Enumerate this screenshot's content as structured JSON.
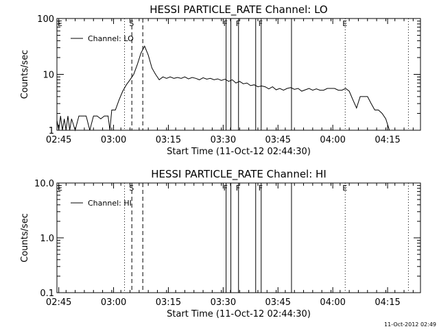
{
  "timestamp": "11-Oct-2012 02:49",
  "chart_data": [
    {
      "type": "line",
      "title": "HESSI PARTICLE_RATE Channel: LO",
      "xlabel": "Start Time (11-Oct-12 02:44:30)",
      "ylabel": "Counts/sec",
      "yscale": "log",
      "ylim": [
        1,
        100
      ],
      "xlim_minutes": [
        0,
        99.5
      ],
      "xticks": [
        "02:45",
        "03:00",
        "03:15",
        "03:30",
        "03:45",
        "04:00",
        "04:15"
      ],
      "xtick_minutes": [
        0.5,
        15.5,
        30.5,
        45.5,
        60.5,
        75.5,
        90.5
      ],
      "yticks": [
        "1",
        "10",
        "100"
      ],
      "ytick_values": [
        1,
        10,
        100
      ],
      "grid": false,
      "legend_position": "top-left",
      "series": [
        {
          "name": "Channel: LO",
          "x": [
            0,
            0.5,
            1,
            1.5,
            2,
            2.5,
            3,
            3.5,
            4,
            5,
            6,
            7,
            8,
            9,
            10,
            11,
            12,
            13,
            14,
            14.5,
            15,
            16,
            17,
            18,
            19,
            20,
            21,
            22,
            23,
            24,
            25,
            26,
            27,
            28,
            29,
            30,
            31,
            32,
            33,
            34,
            35,
            36,
            37,
            38,
            39,
            40,
            41,
            42,
            43,
            44,
            45,
            46,
            47,
            48,
            49,
            50,
            51,
            52,
            53,
            54,
            55,
            56,
            57,
            58,
            59,
            60,
            61,
            62,
            63,
            64,
            65,
            66,
            67,
            68,
            69,
            70,
            71,
            72,
            73,
            74,
            75,
            76,
            77,
            78,
            79,
            80,
            81,
            82,
            83,
            84,
            85,
            86,
            87,
            88,
            89,
            90,
            91
          ],
          "y": [
            1.5,
            1,
            1.8,
            1,
            1.6,
            1,
            1.8,
            1,
            1.6,
            1,
            1.8,
            1.8,
            1.8,
            1,
            1.8,
            1.8,
            1.6,
            1.8,
            1.8,
            1,
            2.3,
            2.3,
            3.5,
            5,
            6.5,
            8,
            10,
            15,
            24,
            32,
            22,
            13,
            10,
            8,
            9,
            8.5,
            9,
            8.5,
            8.8,
            8.5,
            9,
            8.3,
            8.8,
            8.5,
            8,
            8.7,
            8.2,
            8.5,
            8,
            8.3,
            7.8,
            8.2,
            7.5,
            8,
            7,
            7.5,
            6.8,
            7,
            6.3,
            6.5,
            6,
            6.2,
            6,
            5.5,
            6,
            5.3,
            5.6,
            5.2,
            5.6,
            5.8,
            5.4,
            5.6,
            5,
            5.3,
            5.6,
            5.2,
            5.5,
            5.2,
            5.2,
            5.6,
            5.6,
            5.6,
            5.2,
            5.2,
            5.6,
            5,
            3.5,
            2.5,
            4,
            4,
            4,
            3,
            2.3,
            2.3,
            2,
            1.6,
            1
          ]
        }
      ],
      "vlines": [
        {
          "minute": 18.5,
          "style": "dotted",
          "label": ""
        },
        {
          "minute": 20.5,
          "style": "dashed",
          "label": "S"
        },
        {
          "minute": 23.5,
          "style": "dashed",
          "label": ""
        },
        {
          "minute": 46.3,
          "style": "solid",
          "label": "F"
        },
        {
          "minute": 47.6,
          "style": "solid",
          "label": ""
        },
        {
          "minute": 49.7,
          "style": "solid",
          "label": "F"
        },
        {
          "minute": 54.4,
          "style": "solid",
          "label": ""
        },
        {
          "minute": 55.9,
          "style": "solid",
          "label": "F"
        },
        {
          "minute": 64.2,
          "style": "solid",
          "label": ""
        },
        {
          "minute": 78.9,
          "style": "dotted",
          "label": "E"
        },
        {
          "minute": 96.2,
          "style": "dotted",
          "label": ""
        }
      ],
      "edge_labels": [
        "E"
      ]
    },
    {
      "type": "line",
      "title": "HESSI PARTICLE_RATE Channel: HI",
      "xlabel": "Start Time (11-Oct-12 02:44:30)",
      "ylabel": "Counts/sec",
      "yscale": "log",
      "ylim": [
        0.1,
        10
      ],
      "xlim_minutes": [
        0,
        99.5
      ],
      "xticks": [
        "02:45",
        "03:00",
        "03:15",
        "03:30",
        "03:45",
        "04:00",
        "04:15"
      ],
      "xtick_minutes": [
        0.5,
        15.5,
        30.5,
        45.5,
        60.5,
        75.5,
        90.5
      ],
      "yticks": [
        "0.1",
        "1.0",
        "10.0"
      ],
      "ytick_values": [
        0.1,
        1,
        10
      ],
      "grid": false,
      "legend_position": "top-left",
      "series": [
        {
          "name": "Channel: HI",
          "x": [],
          "y": []
        }
      ],
      "vlines": [
        {
          "minute": 18.5,
          "style": "dotted",
          "label": ""
        },
        {
          "minute": 20.5,
          "style": "dashed",
          "label": "S"
        },
        {
          "minute": 23.5,
          "style": "dashed",
          "label": ""
        },
        {
          "minute": 46.3,
          "style": "solid",
          "label": "F"
        },
        {
          "minute": 47.6,
          "style": "solid",
          "label": ""
        },
        {
          "minute": 49.7,
          "style": "solid",
          "label": "F"
        },
        {
          "minute": 54.4,
          "style": "solid",
          "label": ""
        },
        {
          "minute": 55.9,
          "style": "solid",
          "label": "F"
        },
        {
          "minute": 64.2,
          "style": "solid",
          "label": ""
        },
        {
          "minute": 78.9,
          "style": "dotted",
          "label": "E"
        },
        {
          "minute": 96.2,
          "style": "dotted",
          "label": ""
        }
      ],
      "edge_labels": [
        "E"
      ]
    }
  ]
}
